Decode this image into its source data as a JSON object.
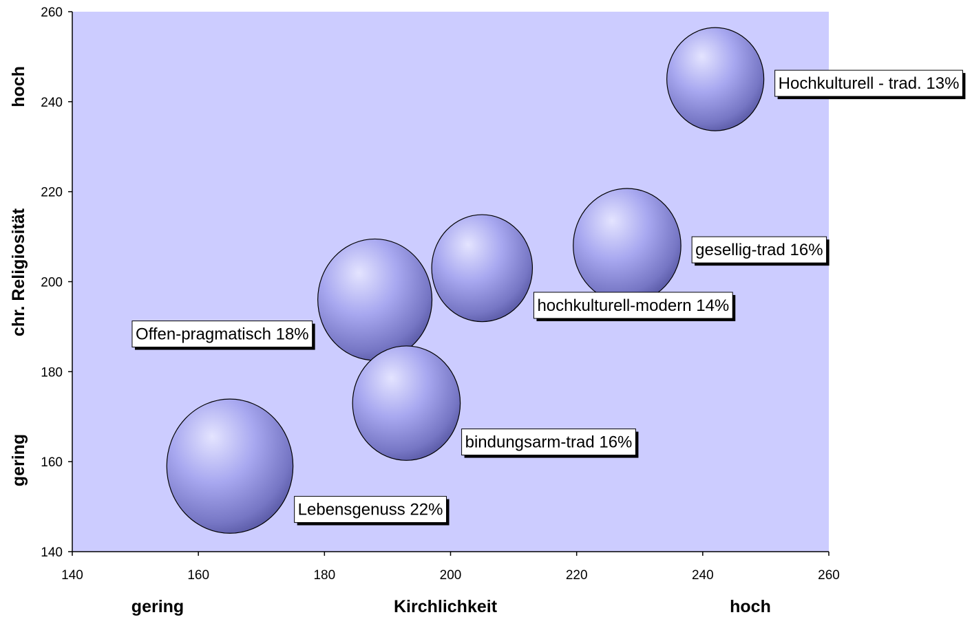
{
  "chart_data": {
    "type": "bubble",
    "xlabel": "Kirchlichkeit",
    "ylabel": "chr. Religiosität",
    "x_axis_low_label": "gering",
    "x_axis_high_label": "hoch",
    "y_axis_low_label": "gering",
    "y_axis_high_label": "hoch",
    "xlim": [
      140,
      260
    ],
    "ylim": [
      140,
      260
    ],
    "x_ticks": [
      "140",
      "160",
      "180",
      "200",
      "220",
      "240",
      "260"
    ],
    "y_ticks": [
      "140",
      "160",
      "180",
      "200",
      "220",
      "240",
      "260"
    ],
    "grid": false,
    "colors": {
      "plot_background": "#ccccff",
      "bubble_highlight": "#e4e4ff",
      "bubble_mid": "#9c9cea",
      "bubble_shadow": "#5a5aa6",
      "bubble_outline": "#000000"
    },
    "points": [
      {
        "label": "Lebensgenuss 22%",
        "x": 165,
        "y": 159,
        "size": 22
      },
      {
        "label": "Offen-pragmatisch 18%",
        "x": 188,
        "y": 196,
        "size": 18
      },
      {
        "label": "bindungsarm-trad 16%",
        "x": 193,
        "y": 173,
        "size": 16
      },
      {
        "label": "hochkulturell-modern  14%",
        "x": 205,
        "y": 203,
        "size": 14
      },
      {
        "label": "gesellig-trad 16%",
        "x": 228,
        "y": 208,
        "size": 16
      },
      {
        "label": "Hochkulturell - trad. 13%",
        "x": 242,
        "y": 245,
        "size": 13
      }
    ]
  }
}
